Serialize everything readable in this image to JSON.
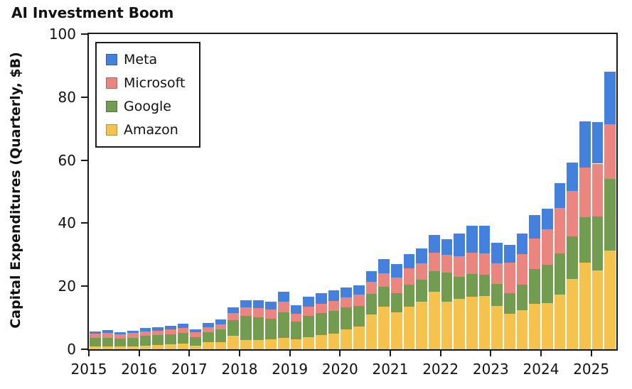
{
  "chart_data": {
    "type": "bar",
    "subtype": "stacked_quarterly",
    "title": "AI Investment Boom",
    "ylabel": "Capital Expenditures (Quarterly, $B)",
    "xlabel": "",
    "ylim": [
      0,
      100
    ],
    "yticks": [
      0,
      20,
      40,
      60,
      80,
      100
    ],
    "grid": false,
    "legend_position": "upper-left-inside",
    "x_year_labels": [
      "2015",
      "2016",
      "2017",
      "2018",
      "2019",
      "2020",
      "2021",
      "2022",
      "2023",
      "2024",
      "2025"
    ],
    "quarters": [
      "2015Q1",
      "2015Q2",
      "2015Q3",
      "2015Q4",
      "2016Q1",
      "2016Q2",
      "2016Q3",
      "2016Q4",
      "2017Q1",
      "2017Q2",
      "2017Q3",
      "2017Q4",
      "2018Q1",
      "2018Q2",
      "2018Q3",
      "2018Q4",
      "2019Q1",
      "2019Q2",
      "2019Q3",
      "2019Q4",
      "2020Q1",
      "2020Q2",
      "2020Q3",
      "2020Q4",
      "2021Q1",
      "2021Q2",
      "2021Q3",
      "2021Q4",
      "2022Q1",
      "2022Q2",
      "2022Q3",
      "2022Q4",
      "2023Q1",
      "2023Q2",
      "2023Q3",
      "2023Q4",
      "2024Q1",
      "2024Q2",
      "2024Q3",
      "2024Q4",
      "2025Q1",
      "2025Q2"
    ],
    "stack_order_bottom_to_top": [
      "Amazon",
      "Google",
      "Microsoft",
      "Meta"
    ],
    "series": [
      {
        "name": "Amazon",
        "color": "#f5c24d",
        "values": [
          0.8,
          0.9,
          0.8,
          0.9,
          1.1,
          1.4,
          1.5,
          1.7,
          1.2,
          2.2,
          2.3,
          4.2,
          2.9,
          3.0,
          3.2,
          3.7,
          3.2,
          3.8,
          4.5,
          4.9,
          6.4,
          7.2,
          11.0,
          13.5,
          11.8,
          13.6,
          15.1,
          18.3,
          15.2,
          16.0,
          16.6,
          16.9,
          13.8,
          11.2,
          12.3,
          14.4,
          14.7,
          17.3,
          22.3,
          27.5,
          24.9,
          31.4
        ]
      },
      {
        "name": "Google",
        "color": "#729c4f",
        "values": [
          2.9,
          2.8,
          2.6,
          2.8,
          3.1,
          3.0,
          3.2,
          3.5,
          2.6,
          3.1,
          3.9,
          5.1,
          7.8,
          7.2,
          6.5,
          8.0,
          5.5,
          6.8,
          7.0,
          7.2,
          6.8,
          6.6,
          6.5,
          6.3,
          6.0,
          7.0,
          6.9,
          6.5,
          9.2,
          7.0,
          7.3,
          6.8,
          6.9,
          6.7,
          8.2,
          11.0,
          12.2,
          13.1,
          13.5,
          14.3,
          17.2,
          22.7
        ]
      },
      {
        "name": "Microsoft",
        "color": "#ea8580",
        "values": [
          1.3,
          1.5,
          1.3,
          1.5,
          1.5,
          1.5,
          1.5,
          1.6,
          1.5,
          1.6,
          1.7,
          2.1,
          2.5,
          2.8,
          2.9,
          3.3,
          2.6,
          3.0,
          3.0,
          3.3,
          3.3,
          3.5,
          4.0,
          4.3,
          4.9,
          5.0,
          5.3,
          5.9,
          5.5,
          6.4,
          6.7,
          6.8,
          6.5,
          9.5,
          9.7,
          9.8,
          11.2,
          14.4,
          14.5,
          15.9,
          16.8,
          17.2
        ]
      },
      {
        "name": "Meta",
        "color": "#4381dd",
        "values": [
          0.6,
          0.8,
          0.8,
          0.7,
          1.0,
          1.1,
          1.3,
          1.4,
          1.1,
          1.4,
          1.6,
          2.0,
          2.3,
          2.6,
          2.4,
          3.2,
          2.6,
          3.0,
          3.2,
          3.3,
          3.1,
          3.0,
          3.3,
          4.4,
          4.3,
          4.5,
          4.7,
          5.5,
          5.1,
          7.4,
          8.5,
          8.7,
          6.5,
          5.8,
          6.5,
          7.3,
          6.4,
          8.0,
          9.0,
          14.5,
          13.2,
          16.8
        ]
      }
    ],
    "legend_items": [
      {
        "label": "Meta",
        "color": "#4381dd"
      },
      {
        "label": "Microsoft",
        "color": "#ea8580"
      },
      {
        "label": "Google",
        "color": "#729c4f"
      },
      {
        "label": "Amazon",
        "color": "#f5c24d"
      }
    ],
    "axis_color": "#1a1a1a",
    "text_color": "#111111",
    "background_color": "#ffffff"
  }
}
